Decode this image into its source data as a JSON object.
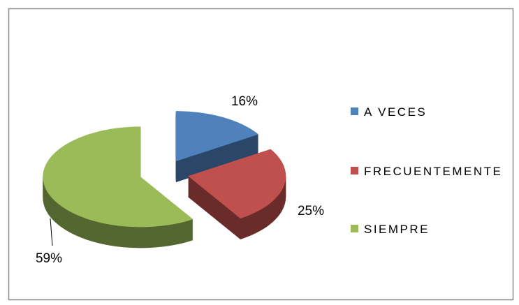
{
  "chart_data": {
    "type": "pie",
    "categories": [
      "A VECES",
      "FRECUENTEMENTE",
      "SIEMPRE"
    ],
    "values": [
      16,
      25,
      59
    ],
    "value_labels": [
      "16%",
      "25%",
      "59%"
    ],
    "colors": [
      "#4f81bd",
      "#c0504d",
      "#9bbb59"
    ],
    "legend": "right"
  }
}
